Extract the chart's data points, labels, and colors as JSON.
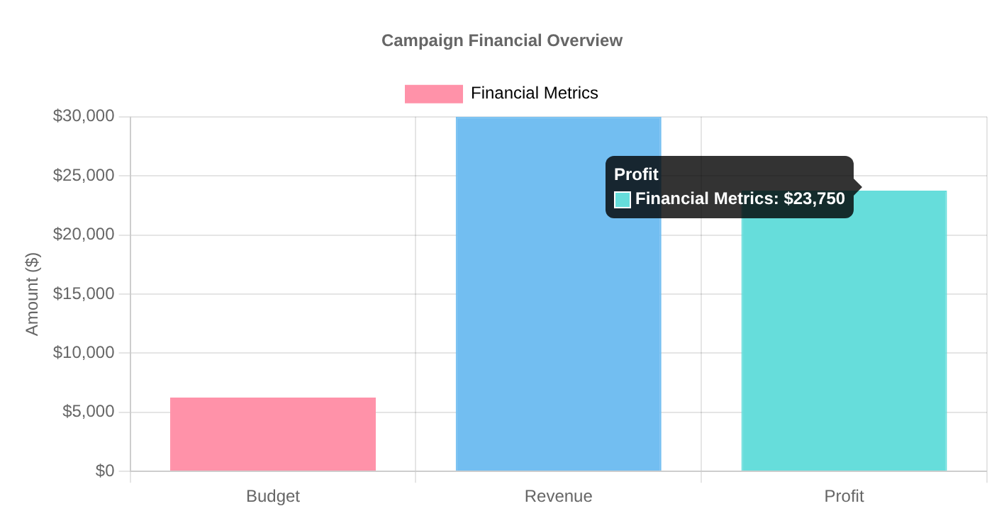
{
  "chart_data": {
    "type": "bar",
    "title": "Campaign Financial Overview",
    "ylabel": "Amount ($)",
    "categories": [
      "Budget",
      "Revenue",
      "Profit"
    ],
    "series": [
      {
        "name": "Financial Metrics",
        "color": "#ff92a9",
        "colors": [
          "#ff92a9",
          "#72bef1",
          "#66dddb"
        ],
        "values": [
          6250,
          30000,
          23750
        ]
      }
    ],
    "ylim": [
      0,
      30000
    ],
    "yticks": [
      {
        "value": 0,
        "label": "$0"
      },
      {
        "value": 5000,
        "label": "$5,000"
      },
      {
        "value": 10000,
        "label": "$10,000"
      },
      {
        "value": 15000,
        "label": "$15,000"
      },
      {
        "value": 20000,
        "label": "$20,000"
      },
      {
        "value": 25000,
        "label": "$25,000"
      },
      {
        "value": 30000,
        "label": "$30,000"
      }
    ],
    "grid": true,
    "legend": "top",
    "annotations": [
      "Profit",
      "Financial Metrics: $23,750"
    ]
  }
}
